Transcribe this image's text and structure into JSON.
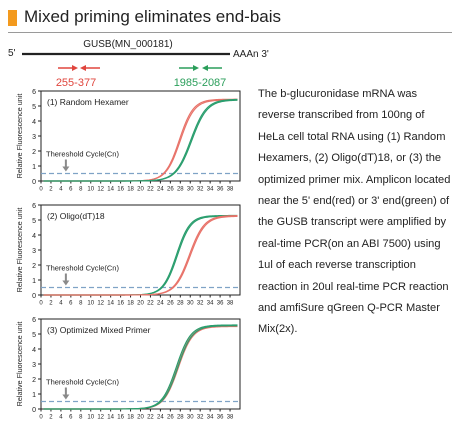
{
  "header": {
    "title": "Mixed priming eliminates end-bais",
    "accent_color": "#f39a1e"
  },
  "gene_map": {
    "left_label": "5'",
    "gene_name": "GUSB(MN_000181)",
    "right_label": "AAAn 3'",
    "amplicon_5": {
      "label": "255-377",
      "color": "#e0453d"
    },
    "amplicon_3": {
      "label": "1985-2087",
      "color": "#2a9e5a"
    }
  },
  "description": "The b-glucuronidase mRNA was reverse transcribed from 100ng of  HeLa cell total RNA using (1) Random Hexamers, (2) Oligo(dT)18, or (3) the optimized primer mix. Amplicon located near the 5' end(red) or 3' end(green) of the GUSB  transcript were amplified  by real-time PCR(on an ABI 7500) using 1ul of each reverse transcription reaction in 20ul real-time PCR reaction and amfiSure qGreen Q-PCR Master Mix(2x).",
  "chart_data": [
    {
      "type": "line",
      "title": "(1) Random Hexamer",
      "ylabel": "Relative Fluorescence unit",
      "xticks": [
        0,
        2,
        4,
        6,
        8,
        10,
        12,
        14,
        16,
        18,
        20,
        22,
        24,
        26,
        28,
        30,
        32,
        34,
        36,
        38
      ],
      "yticks": [
        0,
        1,
        2,
        3,
        4,
        5,
        6
      ],
      "xlim": [
        0,
        40
      ],
      "ylim": [
        0,
        6
      ],
      "threshold": {
        "label": "Thereshold Cycle(Cn)",
        "value": 0.5
      },
      "series": [
        {
          "color": "#e8736a",
          "curves": [
            {
              "mid": 27.8,
              "slope": 1.4,
              "max": 5.45
            },
            {
              "mid": 28.0,
              "slope": 1.42,
              "max": 5.4
            }
          ]
        },
        {
          "color": "#2a9e6e",
          "curves": [
            {
              "mid": 30.1,
              "slope": 1.55,
              "max": 5.45
            },
            {
              "mid": 30.3,
              "slope": 1.55,
              "max": 5.4
            }
          ]
        }
      ]
    },
    {
      "type": "line",
      "title": "(2) Oligo(dT)18",
      "ylabel": "Relative Fluorescence unit",
      "xticks": [
        0,
        2,
        4,
        6,
        8,
        10,
        12,
        14,
        16,
        18,
        20,
        22,
        24,
        26,
        28,
        30,
        32,
        34,
        36,
        38
      ],
      "yticks": [
        0,
        1,
        2,
        3,
        4,
        5,
        6
      ],
      "xlim": [
        0,
        40
      ],
      "ylim": [
        0,
        6
      ],
      "threshold": {
        "label": "Thereshold Cycle(Cn)",
        "value": 0.5
      },
      "series": [
        {
          "color": "#2a9e6e",
          "curves": [
            {
              "mid": 27.2,
              "slope": 1.35,
              "max": 5.3
            },
            {
              "mid": 27.4,
              "slope": 1.35,
              "max": 5.25
            }
          ]
        },
        {
          "color": "#e8736a",
          "curves": [
            {
              "mid": 29.8,
              "slope": 1.5,
              "max": 5.3
            },
            {
              "mid": 30.0,
              "slope": 1.5,
              "max": 5.25
            }
          ]
        }
      ]
    },
    {
      "type": "line",
      "title": "(3) Optimized Mixed Primer",
      "ylabel": "Relative Fluorescence unit",
      "xticks": [
        0,
        2,
        4,
        6,
        8,
        10,
        12,
        14,
        16,
        18,
        20,
        22,
        24,
        26,
        28,
        30,
        32,
        34,
        36,
        38
      ],
      "yticks": [
        0,
        1,
        2,
        3,
        4,
        5,
        6
      ],
      "xlim": [
        0,
        40
      ],
      "ylim": [
        0,
        6
      ],
      "threshold": {
        "label": "Thereshold Cycle(Cn)",
        "value": 0.5
      },
      "series": [
        {
          "color": "#e8736a",
          "curves": [
            {
              "mid": 27.4,
              "slope": 1.45,
              "max": 5.55
            },
            {
              "mid": 27.6,
              "slope": 1.45,
              "max": 5.5
            }
          ]
        },
        {
          "color": "#2a9e6e",
          "curves": [
            {
              "mid": 27.2,
              "slope": 1.45,
              "max": 5.6
            },
            {
              "mid": 27.5,
              "slope": 1.45,
              "max": 5.55
            }
          ]
        }
      ]
    }
  ]
}
